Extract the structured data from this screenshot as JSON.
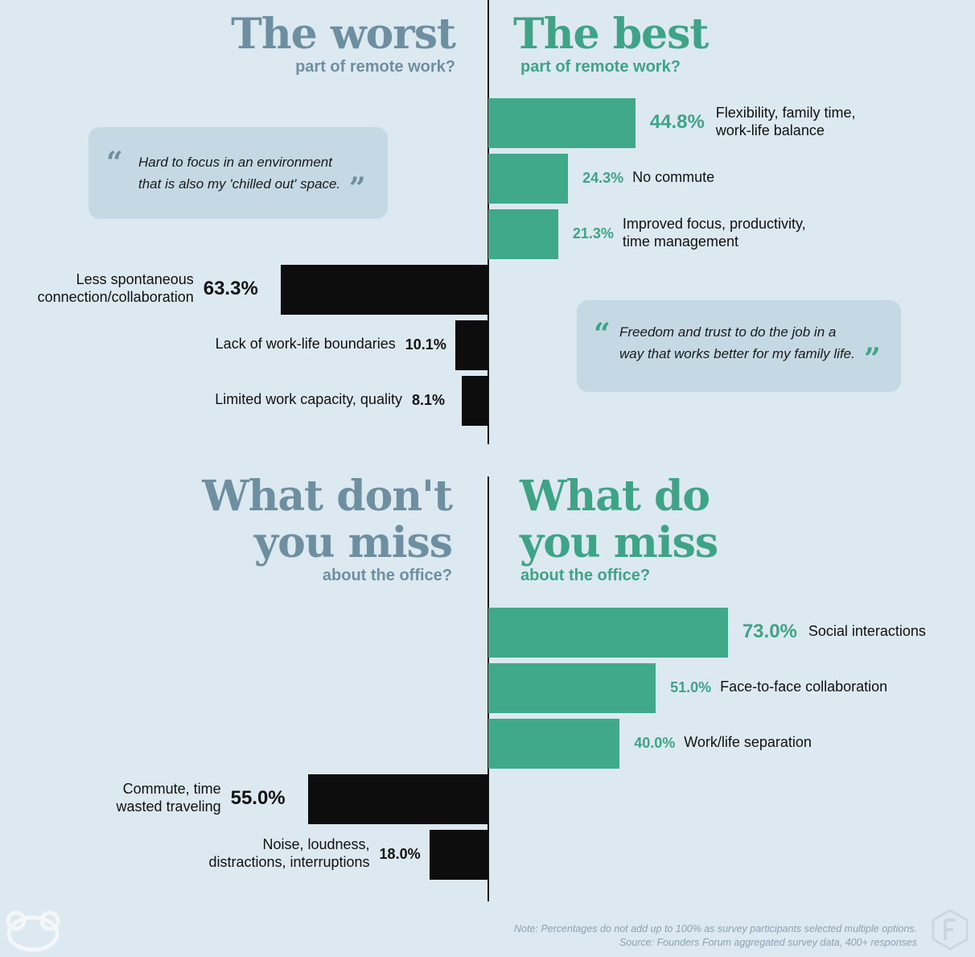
{
  "top": {
    "worst_title": "The worst",
    "worst_subtitle": "part of remote work?",
    "best_title": "The best",
    "best_subtitle": "part of remote work?",
    "quote_left": "Hard to focus in an environment\nthat is also my 'chilled out' space.",
    "quote_right": "Freedom and trust to do the job in a\nway that works better for my family life."
  },
  "bottom": {
    "left_title_1": "What don't",
    "left_title_2": "you miss",
    "left_subtitle": "about the office?",
    "right_title_1": "What do",
    "right_title_2": "you miss",
    "right_subtitle": "about the office?"
  },
  "footer": {
    "note": "Note: Percentages do not add up to 100% as survey participants selected multiple options.",
    "source": "Source: Founders Forum aggregated survey data, 400+ responses"
  },
  "colors": {
    "green": "#3fa98a",
    "black": "#0d0d0d",
    "slate": "#6e8fa0",
    "background": "#dde9f0"
  },
  "chart_data": [
    {
      "type": "bar",
      "title": "The best part of remote work?",
      "categories": [
        "Flexibility, family time,\nwork-life balance",
        "No commute",
        "Improved focus, productivity,\ntime management"
      ],
      "values": [
        44.8,
        24.3,
        21.3
      ],
      "labels": [
        "44.8%",
        "24.3%",
        "21.3%"
      ],
      "color": "#3fa98a"
    },
    {
      "type": "bar",
      "title": "The worst part of remote work?",
      "categories": [
        "Less spontaneous\nconnection/collaboration",
        "Lack of work-life boundaries",
        "Limited work capacity, quality"
      ],
      "values": [
        63.3,
        10.1,
        8.1
      ],
      "labels": [
        "63.3%",
        "10.1%",
        "8.1%"
      ],
      "color": "#0d0d0d"
    },
    {
      "type": "bar",
      "title": "What do you miss about the office?",
      "categories": [
        "Social interactions",
        "Face-to-face collaboration",
        "Work/life separation"
      ],
      "values": [
        73.0,
        51.0,
        40.0
      ],
      "labels": [
        "73.0%",
        "51.0%",
        "40.0%"
      ],
      "color": "#3fa98a"
    },
    {
      "type": "bar",
      "title": "What don't you miss about the office?",
      "categories": [
        "Commute, time\nwasted traveling",
        "Noise, loudness,\ndistractions, interruptions"
      ],
      "values": [
        55.0,
        18.0
      ],
      "labels": [
        "55.0%",
        "18.0%"
      ],
      "color": "#0d0d0d"
    }
  ]
}
